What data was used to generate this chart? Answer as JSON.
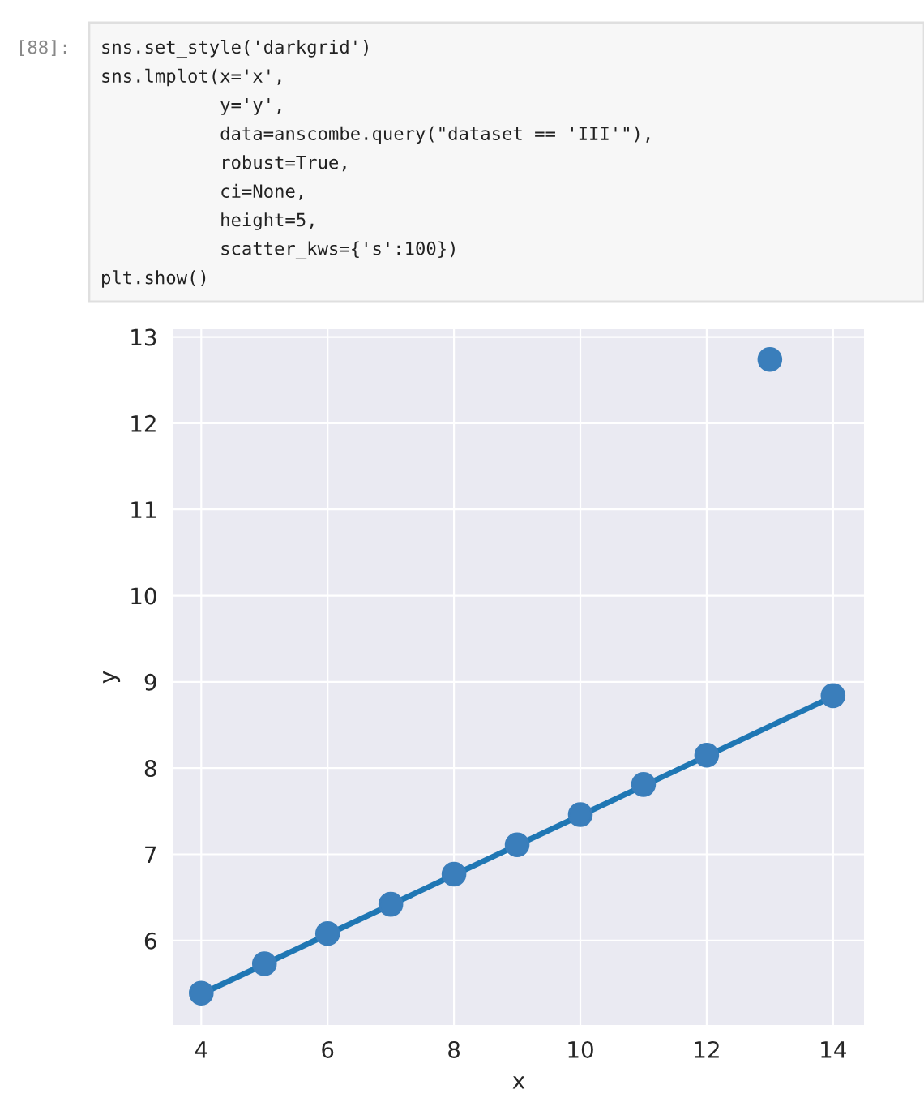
{
  "chart_data": {
    "type": "scatter",
    "xlabel": "x",
    "ylabel": "y",
    "xlim": [
      3.56,
      14.49
    ],
    "ylim": [
      5.02,
      13.09
    ],
    "xticks": [
      4,
      6,
      8,
      10,
      12,
      14
    ],
    "yticks": [
      6,
      7,
      8,
      9,
      10,
      11,
      12,
      13
    ],
    "grid": true,
    "series": [
      {
        "marker": "circle",
        "color": "#3a7ebb",
        "x": [
          10,
          8,
          13,
          9,
          11,
          14,
          6,
          4,
          12,
          7,
          5
        ],
        "values": [
          7.46,
          6.77,
          12.74,
          7.11,
          7.81,
          8.84,
          6.08,
          5.39,
          8.15,
          6.42,
          5.73
        ]
      },
      {
        "type": "line",
        "color": "#1f77b4",
        "x": [
          4,
          14
        ],
        "values": [
          5.38,
          8.83
        ]
      }
    ],
    "annotations": [
      "[88]:",
      "sns.set_style('darkgrid')",
      "sns.lmplot(x='x',",
      "           y='y',",
      "           data=anscombe.query(\"dataset == 'III'\"),",
      "           robust=True,",
      "           ci=None,",
      "           height=5,",
      "           scatter_kws={'s':100})",
      "plt.show()"
    ]
  }
}
